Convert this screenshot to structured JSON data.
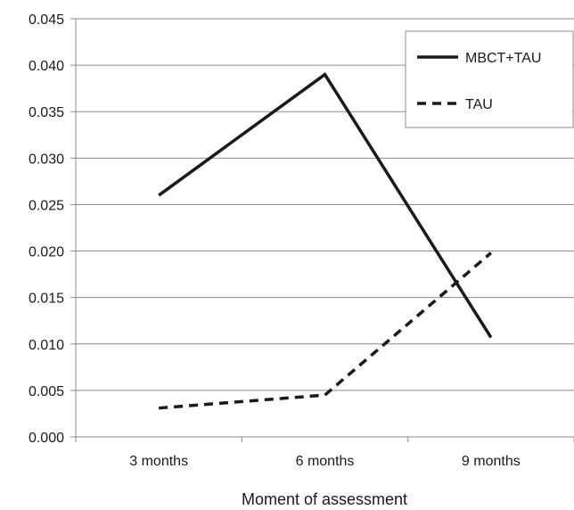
{
  "chart_data": {
    "type": "line",
    "categories": [
      "3 months",
      "6 months",
      "9 months"
    ],
    "series": [
      {
        "name": "MBCT+TAU",
        "values": [
          0.026,
          0.039,
          0.0107
        ],
        "style": "solid"
      },
      {
        "name": "TAU",
        "values": [
          0.0031,
          0.0045,
          0.0198
        ],
        "style": "dashed"
      }
    ],
    "xlabel": "Moment of assessment",
    "ylabel": "",
    "ylim": [
      0,
      0.045
    ],
    "yticks": [
      "0.000",
      "0.005",
      "0.010",
      "0.015",
      "0.020",
      "0.025",
      "0.030",
      "0.035",
      "0.040",
      "0.045"
    ],
    "grid": true,
    "legend_position": "top-right",
    "colors": {
      "line": "#1a1a1a",
      "grid": "#8c8c8c",
      "axis": "#8c8c8c",
      "background": "#ffffff"
    }
  }
}
